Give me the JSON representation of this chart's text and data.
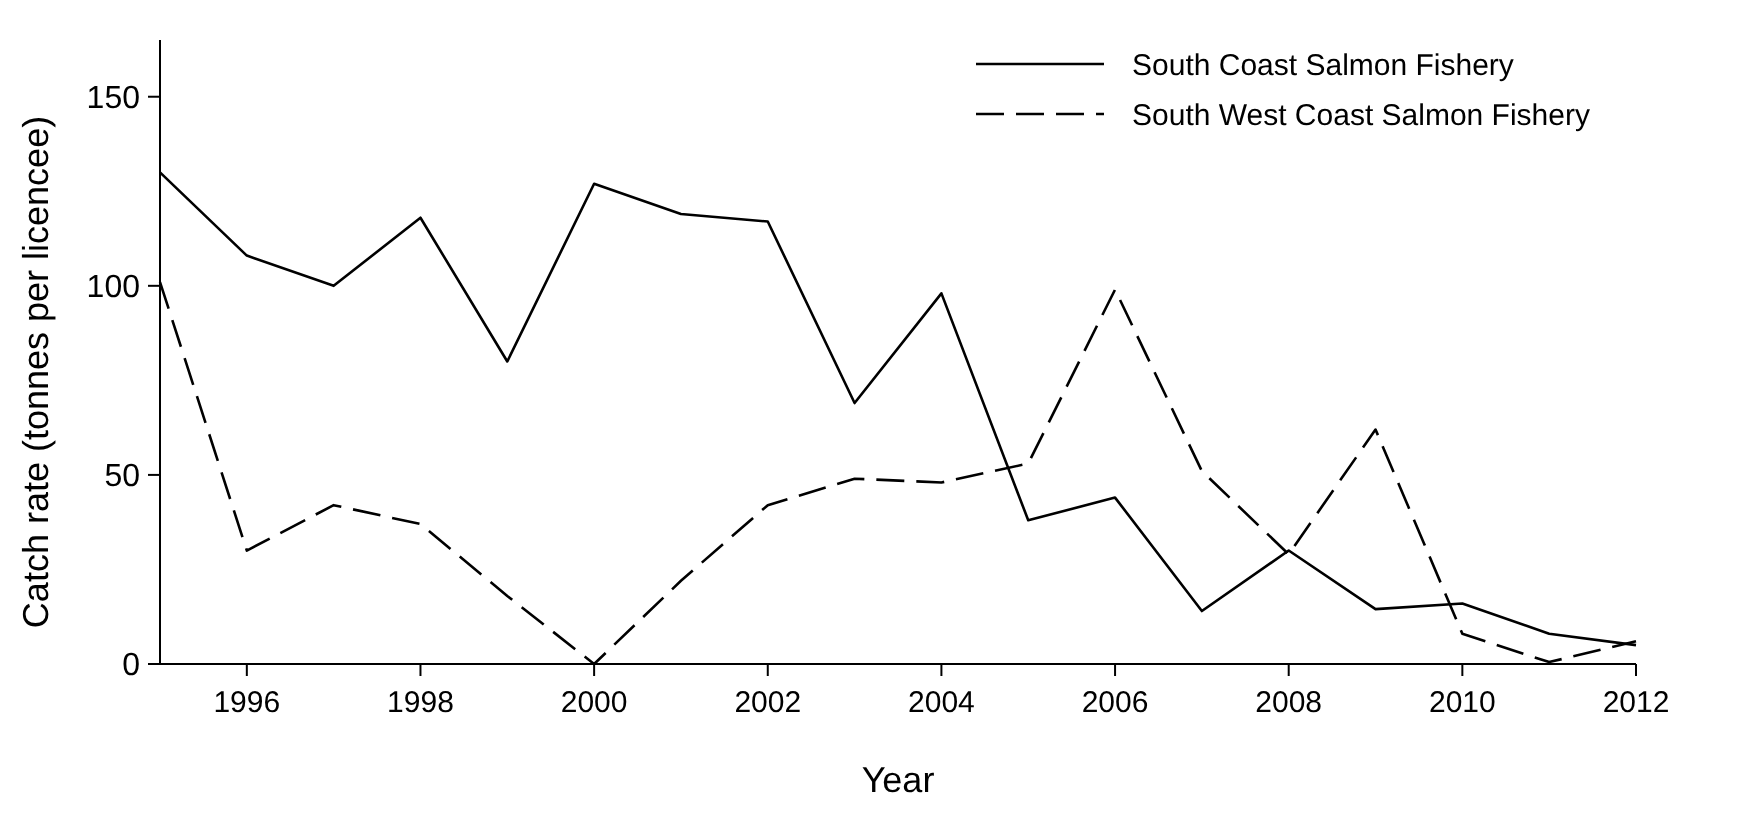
{
  "chart_data": {
    "type": "line",
    "xlabel": "Year",
    "ylabel": "Catch rate (tonnes per licencee)",
    "x": [
      1995,
      1996,
      1997,
      1998,
      1999,
      2000,
      2001,
      2002,
      2003,
      2004,
      2005,
      2006,
      2007,
      2008,
      2009,
      2010,
      2011,
      2012
    ],
    "series": [
      {
        "name": "South Coast Salmon Fishery",
        "color": "#000000",
        "line_style": "solid",
        "values": [
          130,
          108,
          100,
          118,
          80,
          127,
          119,
          117,
          69,
          98,
          38,
          44,
          14,
          30,
          14.5,
          16,
          8,
          5
        ]
      },
      {
        "name": "South West Coast Salmon Fishery",
        "color": "#000000",
        "line_style": "dashed",
        "values": [
          101,
          30,
          42,
          37,
          18,
          0,
          22,
          42,
          49,
          48,
          53,
          99,
          51,
          29,
          62,
          8,
          0.5,
          6
        ]
      }
    ],
    "xlim": [
      1995,
      2012
    ],
    "ylim": [
      0,
      165
    ],
    "xticks": [
      1996,
      1998,
      2000,
      2002,
      2004,
      2006,
      2008,
      2010,
      2012
    ],
    "yticks": [
      0,
      50,
      100,
      150
    ],
    "grid": false,
    "legend": "top right",
    "marker": "none"
  }
}
